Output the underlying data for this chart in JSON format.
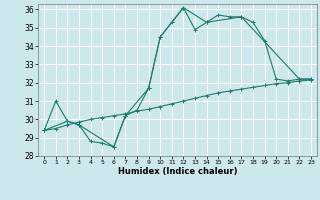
{
  "title": "",
  "xlabel": "Humidex (Indice chaleur)",
  "bg_color": "#cde8ec",
  "line_color": "#1e7a6e",
  "grid_color": "#ffffff",
  "xlim": [
    -0.5,
    23.5
  ],
  "ylim": [
    28,
    36.3
  ],
  "yticks": [
    28,
    29,
    30,
    31,
    32,
    33,
    34,
    35,
    36
  ],
  "xticks": [
    0,
    1,
    2,
    3,
    4,
    5,
    6,
    7,
    8,
    9,
    10,
    11,
    12,
    13,
    14,
    15,
    16,
    17,
    18,
    19,
    20,
    21,
    22,
    23
  ],
  "series1_x": [
    0,
    1,
    2,
    3,
    4,
    5,
    6,
    7,
    8,
    9,
    10,
    11,
    12,
    13,
    14,
    15,
    16,
    17,
    18,
    19,
    20,
    21,
    22,
    23
  ],
  "series1_y": [
    29.4,
    31.0,
    29.9,
    29.7,
    28.8,
    28.7,
    28.5,
    30.2,
    30.5,
    31.7,
    34.5,
    35.3,
    36.1,
    34.9,
    35.3,
    35.7,
    35.6,
    35.6,
    35.3,
    34.3,
    32.2,
    32.1,
    32.2,
    32.2
  ],
  "series2_x": [
    0,
    1,
    2,
    3,
    4,
    5,
    6,
    7,
    8,
    9,
    10,
    11,
    12,
    13,
    14,
    15,
    16,
    17,
    18,
    19,
    20,
    21,
    22,
    23
  ],
  "series2_y": [
    29.4,
    29.5,
    29.7,
    29.85,
    30.0,
    30.1,
    30.2,
    30.3,
    30.45,
    30.55,
    30.7,
    30.85,
    31.0,
    31.15,
    31.3,
    31.45,
    31.55,
    31.65,
    31.75,
    31.85,
    31.95,
    32.0,
    32.1,
    32.15
  ],
  "series3_x": [
    0,
    2,
    3,
    6,
    7,
    9,
    10,
    12,
    14,
    17,
    22,
    23
  ],
  "series3_y": [
    29.4,
    29.9,
    29.7,
    28.5,
    30.2,
    31.7,
    34.5,
    36.1,
    35.3,
    35.6,
    32.2,
    32.2
  ]
}
